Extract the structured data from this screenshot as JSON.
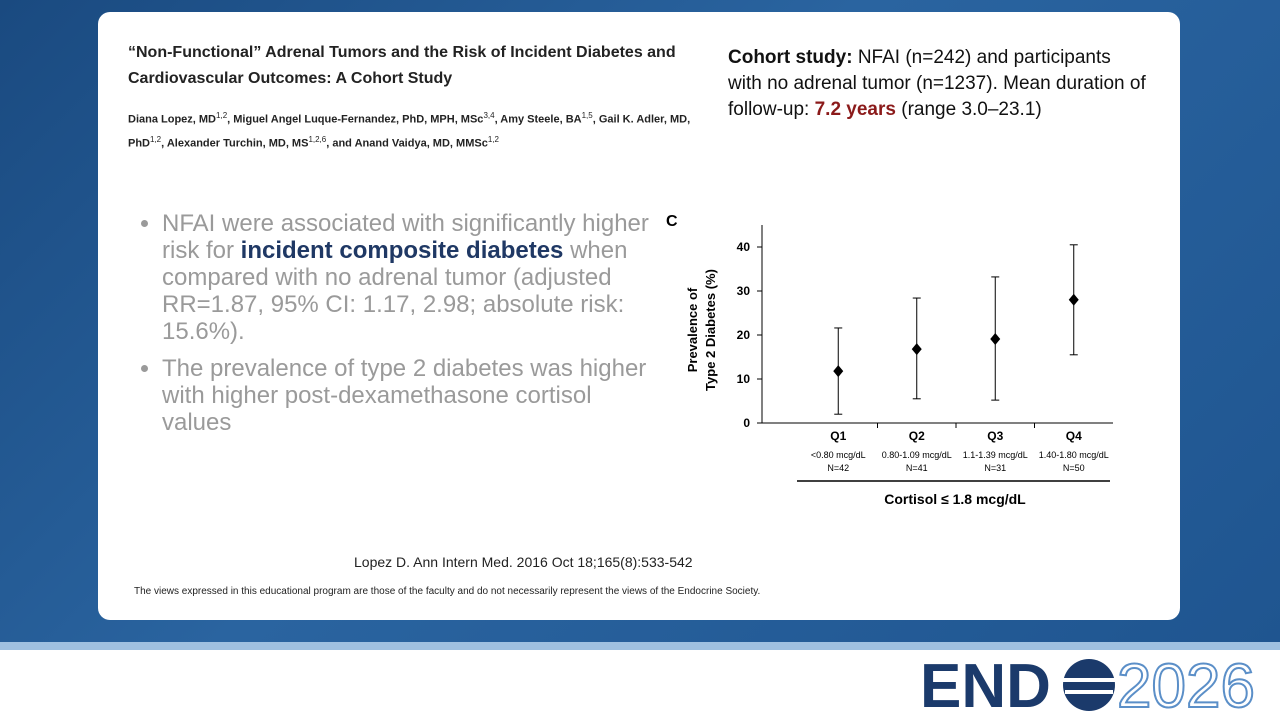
{
  "title": "“Non-Functional” Adrenal Tumors and the Risk of Incident Diabetes and Cardiovascular Outcomes: A Cohort Study",
  "authors": [
    {
      "name": "Diana Lopez, MD",
      "sup": "1,2",
      "after": ", "
    },
    {
      "name": "Miguel Angel Luque-Fernandez, PhD, MPH, MSc",
      "sup": "3,4",
      "after": ", "
    },
    {
      "name": "Amy Steele, BA",
      "sup": "1,5",
      "after": ", "
    },
    {
      "name": "Gail K. Adler, MD, PhD",
      "sup": "1,2",
      "after": ", "
    },
    {
      "name": "Alexander Turchin, MD, MS",
      "sup": "1,2,6",
      "after": ", and "
    },
    {
      "name": "Anand Vaidya, MD, MMSc",
      "sup": "1,2"
    }
  ],
  "cohort": [
    {
      "text": "Cohort study:",
      "style": "bold"
    },
    {
      "text": " NFAI (n=242) and participants with no adrenal tumor (n=1237). Mean duration of follow-up: "
    },
    {
      "text": "7.2 years",
      "style": "highlight"
    },
    {
      "text": " (range 3.0–23.1)"
    }
  ],
  "bullets": [
    [
      {
        "text": "NFAI were associated with significantly higher risk for "
      },
      {
        "text": "incident composite diabetes",
        "style": "bold"
      },
      {
        "text": " when compared with no adrenal tumor (adjusted RR=1.87, 95% CI: 1.17, 2.98; absolute risk: 15.6%)."
      }
    ],
    [
      {
        "text": "The prevalence of type 2 diabetes was higher with higher post-dexamethasone cortisol values"
      }
    ]
  ],
  "chart_data": {
    "type": "errorbar",
    "panel": "C",
    "ylabel": [
      "Prevalence of",
      "Type 2 Diabetes (%)"
    ],
    "xlabel": "Cortisol ≤ 1.8 mcg/dL",
    "categories": [
      "Q1",
      "Q2",
      "Q3",
      "Q4"
    ],
    "ranges": [
      "<0.80 mcg/dL",
      "0.80-1.09 mcg/dL",
      "1.1-1.39 mcg/dL",
      "1.40-1.80 mcg/dL"
    ],
    "counts": [
      "N=42",
      "N=41",
      "N=31",
      "N=50"
    ],
    "values": [
      11.8,
      16.8,
      19.1,
      28.0
    ],
    "lower": [
      2.0,
      5.5,
      5.2,
      15.5
    ],
    "upper": [
      21.6,
      28.4,
      33.2,
      40.5
    ],
    "color": "#000000",
    "ylim": [
      0,
      45
    ],
    "yticks": [
      0,
      10,
      20,
      30,
      40
    ]
  },
  "citation": "Lopez D. Ann Intern Med. 2016 Oct 18;165(8):533-542",
  "disclaimer": "The views expressed in this educational program are those of the faculty and do not necessarily represent the views of the Endocrine Society.",
  "logo": {
    "word": "END",
    "year": "2026"
  }
}
